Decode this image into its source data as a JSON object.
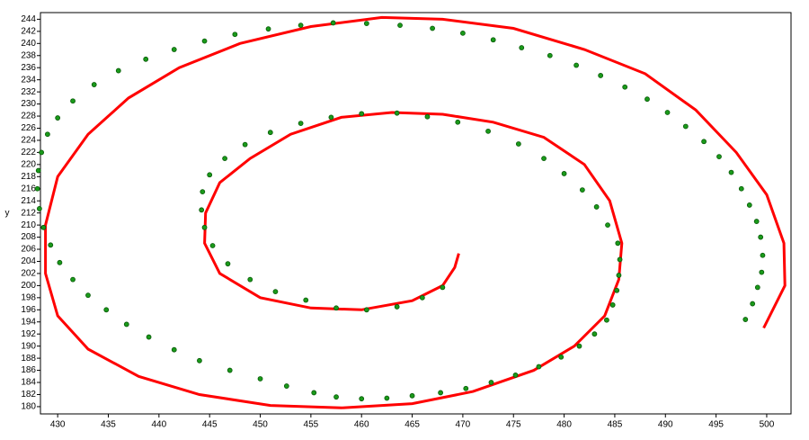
{
  "chart_data": {
    "type": "scatter",
    "y_label": "y",
    "xlim": [
      428.3,
      502.4
    ],
    "ylim": [
      178.8,
      245.1
    ],
    "xticks": [
      430,
      435,
      440,
      445,
      450,
      455,
      460,
      465,
      470,
      475,
      480,
      485,
      490,
      495,
      500
    ],
    "yticks": [
      180,
      182,
      184,
      186,
      188,
      190,
      192,
      194,
      196,
      198,
      200,
      202,
      204,
      206,
      208,
      210,
      212,
      214,
      216,
      218,
      220,
      222,
      224,
      226,
      228,
      230,
      232,
      234,
      236,
      238,
      240,
      242,
      244
    ],
    "series": [
      {
        "style": "line",
        "color": "#ff0000",
        "x": [
          469.6,
          469.2,
          468,
          465,
          460,
          455,
          450,
          446,
          444.5,
          444.6,
          446,
          449,
          453,
          458,
          463,
          468,
          473,
          478,
          482,
          484.5,
          485.7,
          485.4,
          484,
          481,
          477,
          471,
          465,
          458,
          451,
          444,
          438,
          433,
          430,
          428.8,
          428.8,
          430,
          433,
          437,
          442,
          448,
          455,
          462,
          468,
          475,
          482,
          488,
          493,
          497,
          500,
          501.7,
          501.8,
          499.7
        ],
        "y": [
          205.3,
          203,
          200,
          197.5,
          196,
          196.3,
          198,
          202,
          207,
          212,
          217,
          221,
          225,
          227.8,
          228.6,
          228.3,
          227,
          224.5,
          220,
          214,
          207,
          201,
          195,
          190,
          186,
          182.5,
          180.5,
          179.8,
          180.2,
          182,
          185,
          189.5,
          195,
          202,
          210,
          218,
          225,
          231,
          236,
          240,
          242.8,
          244.3,
          244,
          242.5,
          239,
          235,
          229,
          222,
          215,
          207,
          200,
          193
        ]
      },
      {
        "style": "markers",
        "color": "#1a9a1a",
        "x": [
          497.9,
          498.6,
          499.1,
          499.5,
          499.6,
          499.4,
          499,
          498.3,
          497.5,
          496.5,
          495.3,
          493.8,
          492,
          490.2,
          488.2,
          486,
          483.6,
          481.2,
          478.6,
          475.8,
          473,
          470,
          467,
          463.8,
          460.5,
          457.2,
          454,
          450.8,
          447.5,
          444.5,
          441.5,
          438.7,
          436,
          433.6,
          431.5,
          430,
          429,
          428.4,
          428.1,
          428,
          428.2,
          428.6,
          429.3,
          430.2,
          431.5,
          433,
          434.8,
          436.8,
          439,
          441.5,
          444,
          447,
          450,
          452.6,
          455.3,
          457.5,
          460,
          462.5,
          465,
          467.8,
          470.3,
          472.8,
          475.2,
          477.5,
          479.7,
          481.5,
          483,
          484.2,
          484.8,
          485.2,
          485.4,
          485.5,
          485.3,
          484.3,
          483.2,
          481.8,
          480,
          478,
          475.5,
          472.5,
          469.5,
          466.5,
          463.5,
          460,
          457,
          454,
          451,
          448.5,
          446.5,
          445,
          444.3,
          444.2,
          444.5,
          445.3,
          446.8,
          449,
          451.5,
          454.5,
          457.5,
          460.5,
          463.5,
          466,
          468
        ],
        "y": [
          194.4,
          197,
          199.7,
          202.2,
          205,
          208,
          210.6,
          213.3,
          216,
          218.7,
          221.3,
          223.8,
          226.3,
          228.6,
          230.8,
          232.8,
          234.7,
          236.4,
          238,
          239.3,
          240.6,
          241.7,
          242.5,
          243,
          243.3,
          243.4,
          243,
          242.4,
          241.5,
          240.4,
          239,
          237.4,
          235.5,
          233.2,
          230.5,
          227.7,
          225,
          222,
          219,
          216,
          212.7,
          209.6,
          206.7,
          203.8,
          201,
          198.4,
          196,
          193.6,
          191.5,
          189.4,
          187.6,
          186,
          184.6,
          183.4,
          182.3,
          181.6,
          181.3,
          181.4,
          181.8,
          182.3,
          183,
          184,
          185.2,
          186.6,
          188.2,
          190,
          192,
          194.3,
          196.8,
          199.2,
          201.7,
          204.3,
          207,
          210,
          213,
          215.8,
          218.5,
          221,
          223.4,
          225.5,
          227,
          227.9,
          228.5,
          228.4,
          227.8,
          226.8,
          225.3,
          223.3,
          221,
          218.3,
          215.5,
          212.5,
          209.6,
          206.6,
          203.6,
          201,
          199,
          197.6,
          196.3,
          196,
          196.5,
          198,
          199.7
        ]
      }
    ]
  }
}
